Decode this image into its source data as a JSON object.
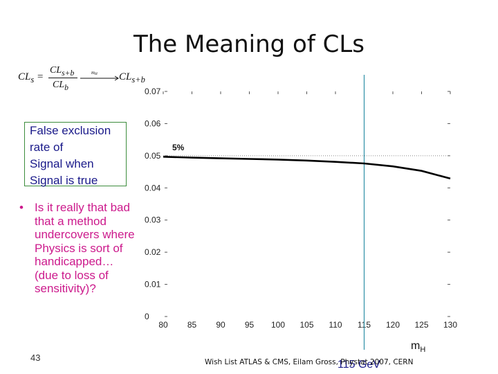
{
  "slide": {
    "title": "The Meaning of CLs",
    "formula": {
      "lhs": "CL",
      "lhs_sub": "s",
      "equals": "=",
      "numerator": "CL",
      "numerator_sub": "s+b",
      "denominator": "CL",
      "denominator_sub": "b",
      "arrow_label": "m",
      "arrow_label_sub": "H",
      "rhs": "CL",
      "rhs_sub": "s+b"
    },
    "box_lines": [
      "False exclusion",
      "rate of",
      "Signal when",
      "Signal is true"
    ],
    "bullet_text": "Is it really that bad that a method undercovers where Physics is sort of handicapped… (due to loss of sensitivity)?",
    "page_number": "43",
    "footer": "Wish List ATLAS & CMS, Eilam Gross, Phystat 2007, CERN",
    "x_axis_label": "m",
    "x_axis_label_sub": "H",
    "marker_label": "115 GeV"
  },
  "colors": {
    "curve": "#000000",
    "marker_line": "#2e8fa6",
    "box_border": "#3c8c3c",
    "box_text": "#1a1a8a",
    "bullet_text": "#cc1a8c"
  },
  "chart_data": {
    "type": "line",
    "x": [
      80,
      85,
      90,
      95,
      100,
      105,
      110,
      115,
      120,
      125,
      130
    ],
    "series": [
      {
        "values": [
          0.0497,
          0.0494,
          0.0492,
          0.049,
          0.0488,
          0.0485,
          0.0481,
          0.0476,
          0.0467,
          0.0453,
          0.0429
        ]
      }
    ],
    "reference_line": {
      "y": 0.05,
      "label": "5%"
    },
    "vertical_marker": {
      "x": 115
    },
    "xticks": [
      "80",
      "85",
      "90",
      "95",
      "100",
      "105",
      "110",
      "115",
      "120",
      "125",
      "130"
    ],
    "yticks": [
      "0",
      "0.01",
      "0.02",
      "0.03",
      "0.04",
      "0.05",
      "0.06",
      "0.07"
    ],
    "xlim": [
      80,
      130
    ],
    "ylim": [
      0,
      0.07
    ],
    "grid": false
  }
}
